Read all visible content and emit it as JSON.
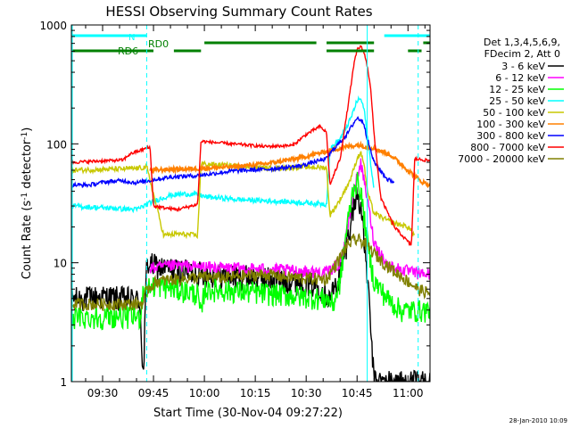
{
  "chart_data": {
    "type": "line",
    "title": "HESSI Observing Summary Count Rates",
    "xlabel": "Start Time (30-Nov-04 09:27:22)",
    "ylabel": "Count Rate (s",
    "ylabel_sup1": "-1",
    "ylabel_mid": " detector",
    "ylabel_sup2": "-1",
    "ylabel_end": ")",
    "y_scale": "log",
    "ylim": [
      1,
      1000
    ],
    "xlim_minutes": [
      560.8,
      666.5
    ],
    "x_ticks": [
      {
        "m": 570,
        "label": "09:30"
      },
      {
        "m": 585,
        "label": "09:45"
      },
      {
        "m": 600,
        "label": "10:00"
      },
      {
        "m": 615,
        "label": "10:15"
      },
      {
        "m": 630,
        "label": "10:30"
      },
      {
        "m": 645,
        "label": "10:45"
      },
      {
        "m": 660,
        "label": "11:00"
      }
    ],
    "y_ticks": [
      {
        "v": 1,
        "label": "1"
      },
      {
        "v": 10,
        "label": "10"
      },
      {
        "v": 100,
        "label": "100"
      },
      {
        "v": 1000,
        "label": "1000"
      }
    ],
    "legend_header": [
      "Det 1,3,4,5,6,9,",
      "FDecim 2, Att 0"
    ],
    "legend_placement": "right",
    "series": [
      {
        "name": "3 - 6 keV",
        "color": "#000000",
        "points": [
          [
            561,
            5
          ],
          [
            570,
            5.2
          ],
          [
            578,
            5
          ],
          [
            581,
            4.8
          ],
          [
            582,
            1
          ],
          [
            583,
            10
          ],
          [
            588,
            9
          ],
          [
            595,
            8.5
          ],
          [
            600,
            8.2
          ],
          [
            608,
            7.8
          ],
          [
            618,
            7.5
          ],
          [
            628,
            7
          ],
          [
            634,
            6.5
          ],
          [
            637,
            5
          ],
          [
            640,
            8
          ],
          [
            642,
            15
          ],
          [
            644,
            30
          ],
          [
            645,
            38
          ],
          [
            646,
            32
          ],
          [
            648,
            8
          ],
          [
            650,
            1
          ],
          [
            655,
            1
          ],
          [
            666.5,
            1
          ]
        ]
      },
      {
        "name": "6 - 12 keV",
        "color": "#ff00ff",
        "points": [
          [
            584,
            9
          ],
          [
            592,
            9.5
          ],
          [
            600,
            9.2
          ],
          [
            610,
            9
          ],
          [
            620,
            8.8
          ],
          [
            630,
            8.5
          ],
          [
            636,
            8.3
          ],
          [
            640,
            10
          ],
          [
            642,
            18
          ],
          [
            644,
            40
          ],
          [
            646,
            70
          ],
          [
            648,
            35
          ],
          [
            650,
            15
          ],
          [
            654,
            9.5
          ],
          [
            658,
            8.8
          ],
          [
            662,
            8.2
          ],
          [
            666.5,
            8
          ]
        ]
      },
      {
        "name": "12 - 25 keV",
        "color": "#00ff00",
        "points": [
          [
            561,
            3.5
          ],
          [
            570,
            3.5
          ],
          [
            575,
            3.6
          ],
          [
            581,
            3.5
          ],
          [
            582,
            6
          ],
          [
            586,
            6.5
          ],
          [
            592,
            6
          ],
          [
            598,
            5.5
          ],
          [
            599,
            3.5
          ],
          [
            600,
            6
          ],
          [
            610,
            5.8
          ],
          [
            620,
            5.5
          ],
          [
            630,
            5.2
          ],
          [
            636,
            5
          ],
          [
            638,
            4.5
          ],
          [
            640,
            7
          ],
          [
            642,
            20
          ],
          [
            644,
            45
          ],
          [
            645,
            48
          ],
          [
            646,
            42
          ],
          [
            648,
            15
          ],
          [
            650,
            7
          ],
          [
            654,
            5
          ],
          [
            658,
            4
          ],
          [
            662,
            4
          ],
          [
            666.5,
            4
          ]
        ]
      },
      {
        "name": "25 - 50 keV",
        "color": "#00ffff",
        "points": [
          [
            561,
            30
          ],
          [
            570,
            29
          ],
          [
            580,
            28
          ],
          [
            585,
            33
          ],
          [
            590,
            37
          ],
          [
            595,
            38
          ],
          [
            599,
            37
          ],
          [
            600,
            36
          ],
          [
            610,
            34
          ],
          [
            620,
            33
          ],
          [
            630,
            32
          ],
          [
            636,
            31
          ],
          [
            637,
            90
          ],
          [
            640,
            110
          ],
          [
            643,
            160
          ],
          [
            645,
            230
          ],
          [
            646,
            240
          ],
          [
            647,
            200
          ],
          [
            648,
            120
          ],
          [
            649,
            70
          ],
          [
            650,
            40
          ]
        ]
      },
      {
        "name": "50 - 100 keV",
        "color": "#c8c800",
        "points": [
          [
            561,
            60
          ],
          [
            570,
            61
          ],
          [
            580,
            62
          ],
          [
            583,
            64
          ],
          [
            588,
            17
          ],
          [
            592,
            17.5
          ],
          [
            598,
            17
          ],
          [
            599,
            68
          ],
          [
            610,
            65
          ],
          [
            620,
            62
          ],
          [
            630,
            64
          ],
          [
            636,
            63
          ],
          [
            637,
            25
          ],
          [
            640,
            34
          ],
          [
            643,
            50
          ],
          [
            645,
            75
          ],
          [
            646,
            85
          ],
          [
            647,
            70
          ],
          [
            648,
            40
          ],
          [
            650,
            26
          ],
          [
            655,
            22
          ],
          [
            660,
            20
          ],
          [
            662,
            17
          ]
        ]
      },
      {
        "name": "100 - 300 keV",
        "color": "#ff8000",
        "points": [
          [
            584,
            60
          ],
          [
            590,
            61
          ],
          [
            598,
            62
          ],
          [
            608,
            64
          ],
          [
            618,
            68
          ],
          [
            628,
            76
          ],
          [
            635,
            85
          ],
          [
            640,
            92
          ],
          [
            645,
            98
          ],
          [
            650,
            92
          ],
          [
            655,
            80
          ],
          [
            660,
            60
          ],
          [
            664,
            48
          ],
          [
            666.5,
            45
          ]
        ]
      },
      {
        "name": "300 - 800 keV",
        "color": "#0000ff",
        "points": [
          [
            561,
            45
          ],
          [
            566,
            45
          ],
          [
            571,
            48
          ],
          [
            576,
            49
          ],
          [
            580,
            47
          ],
          [
            585,
            50
          ],
          [
            591,
            53
          ],
          [
            598,
            54
          ],
          [
            608,
            59
          ],
          [
            618,
            61
          ],
          [
            628,
            65
          ],
          [
            632,
            70
          ],
          [
            636,
            75
          ],
          [
            638,
            90
          ],
          [
            642,
            120
          ],
          [
            644,
            150
          ],
          [
            645,
            165
          ],
          [
            646,
            160
          ],
          [
            647,
            150
          ],
          [
            648,
            110
          ],
          [
            650,
            70
          ],
          [
            654,
            50
          ],
          [
            656,
            48
          ]
        ]
      },
      {
        "name": "800 - 7000 keV",
        "color": "#ff0000",
        "points": [
          [
            561,
            70
          ],
          [
            566,
            71
          ],
          [
            570,
            72
          ],
          [
            576,
            73
          ],
          [
            578,
            82
          ],
          [
            583,
            92
          ],
          [
            584,
            93
          ],
          [
            585,
            30
          ],
          [
            588,
            29
          ],
          [
            592,
            28
          ],
          [
            598,
            31
          ],
          [
            599,
            105
          ],
          [
            608,
            100
          ],
          [
            618,
            95
          ],
          [
            626,
            97
          ],
          [
            630,
            120
          ],
          [
            634,
            140
          ],
          [
            636,
            125
          ],
          [
            637,
            45
          ],
          [
            640,
            75
          ],
          [
            642,
            180
          ],
          [
            644,
            450
          ],
          [
            645,
            620
          ],
          [
            646,
            660
          ],
          [
            647,
            600
          ],
          [
            648,
            450
          ],
          [
            649,
            300
          ],
          [
            650,
            120
          ],
          [
            652,
            35
          ],
          [
            656,
            20
          ],
          [
            660,
            15
          ],
          [
            661,
            14
          ],
          [
            662,
            75
          ],
          [
            666.5,
            72
          ]
        ]
      },
      {
        "name": "7000 - 20000 keV",
        "color": "#808000",
        "points": [
          [
            561,
            4.5
          ],
          [
            570,
            4.5
          ],
          [
            578,
            4.5
          ],
          [
            582,
            4.6
          ],
          [
            583,
            6
          ],
          [
            586,
            7
          ],
          [
            590,
            7.2
          ],
          [
            596,
            7.5
          ],
          [
            600,
            7.6
          ],
          [
            606,
            7.5
          ],
          [
            612,
            7.8
          ],
          [
            618,
            8
          ],
          [
            624,
            7.6
          ],
          [
            630,
            7.4
          ],
          [
            636,
            7.3
          ],
          [
            638,
            9
          ],
          [
            640,
            11
          ],
          [
            642,
            14
          ],
          [
            644,
            15.5
          ],
          [
            646,
            15.5
          ],
          [
            648,
            14
          ],
          [
            650,
            12
          ],
          [
            653,
            10
          ],
          [
            656,
            8.5
          ],
          [
            660,
            7
          ],
          [
            663,
            6
          ],
          [
            666.5,
            5.5
          ]
        ]
      }
    ],
    "annotations": [
      {
        "text": "N",
        "color": "#00ffff"
      },
      {
        "text": "RD0",
        "color": "#008000"
      },
      {
        "text": "RD6",
        "color": "#008000"
      }
    ],
    "state_bars": {
      "night": {
        "color": "#00ffff",
        "segments": [
          [
            560.8,
            583
          ],
          [
            653,
            666.5
          ]
        ]
      },
      "rd0": {
        "color": "#008000",
        "segments": [
          [
            600,
            633
          ],
          [
            636,
            650
          ],
          [
            664.5,
            666.5
          ]
        ]
      },
      "rd6": {
        "color": "#008000",
        "segments": [
          [
            560.8,
            585
          ],
          [
            591,
            599
          ],
          [
            636,
            650
          ],
          [
            660,
            664
          ]
        ]
      }
    },
    "vlines": [
      {
        "m": 583,
        "color": "#00ffff",
        "style": "dashed"
      },
      {
        "m": 648,
        "color": "#00ffff",
        "style": "solid"
      },
      {
        "m": 663,
        "color": "#00ffff",
        "style": "dashed"
      }
    ]
  },
  "footer": {
    "stamp": "28-Jan-2010 10:09"
  }
}
